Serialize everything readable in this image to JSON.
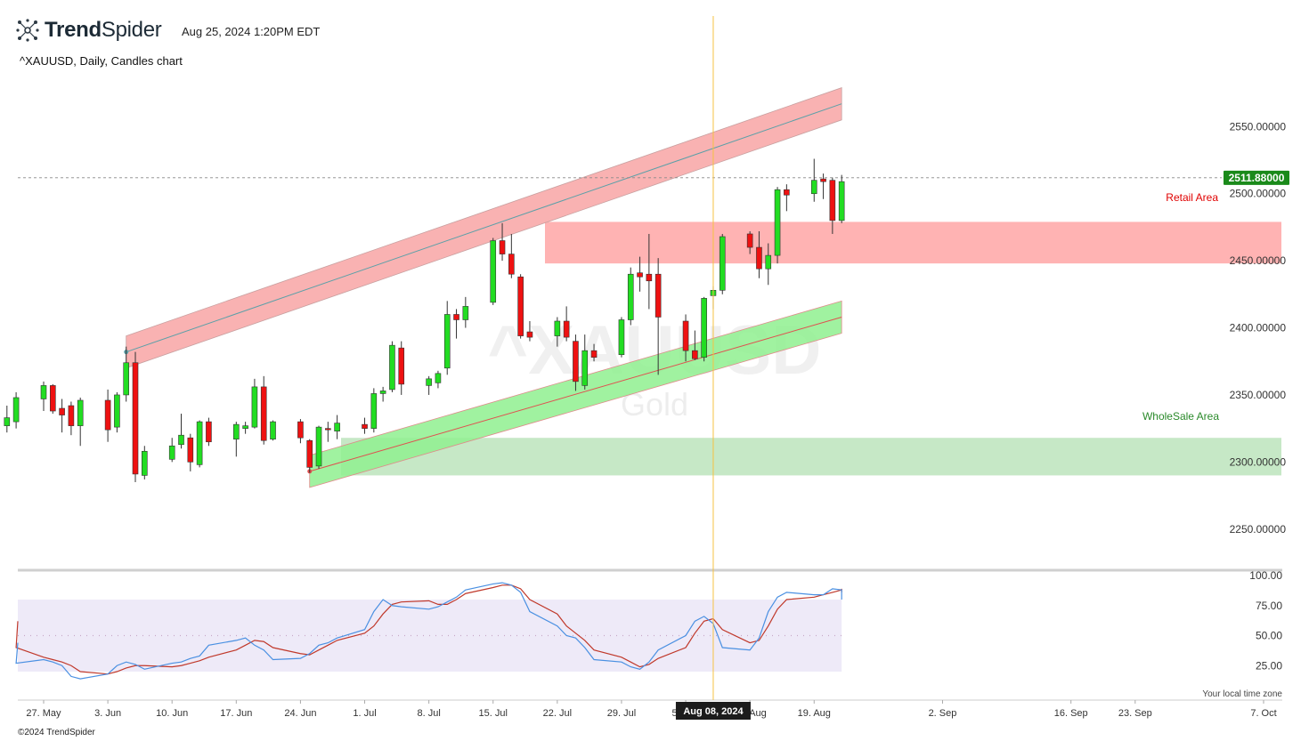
{
  "header": {
    "brand_bold": "Trend",
    "brand_light": "Spider",
    "logo_icon": "trendspider-logo-icon",
    "timestamp": "Aug 25, 2024 1:20PM EDT",
    "subtitle": "^XAUUSD, Daily, Candles chart"
  },
  "footer": {
    "copyright": "©2024 TrendSpider",
    "timezone_note": "Your local time zone"
  },
  "colors": {
    "up": "#22dd22",
    "down": "#ee1111",
    "resistance_band": "#f8a5a5",
    "support_band": "#8ff08f",
    "retail_zone": "#ffb3b3",
    "wholesale_zone": "#c6e8c6",
    "stoch_k": "#4a90e2",
    "stoch_d": "#c0392b",
    "cursor": "#f5c242",
    "price_tag": "#1a8a1a",
    "retail_text": "#e00000",
    "wholesale_text": "#2a8a2a"
  },
  "chart_data": {
    "type": "candlestick",
    "symbol": "^XAUUSD",
    "watermark": {
      "symbol": "^XAUUSD",
      "name": "Gold"
    },
    "timeframe": "Daily",
    "y_range": [
      2220,
      2590
    ],
    "y_ticks": [
      2250,
      2300,
      2350,
      2400,
      2450,
      2500,
      2550
    ],
    "y_tick_labels": [
      "2250.00000",
      "2300.00000",
      "2350.00000",
      "2400.00000",
      "2450.00000",
      "2500.00000",
      "2550.00000"
    ],
    "last_price": 2511.88,
    "last_price_label": "2511.88000",
    "x_ticks": [
      {
        "label": "27. May",
        "date": "2024-05-27"
      },
      {
        "label": "3. Jun",
        "date": "2024-06-03"
      },
      {
        "label": "10. Jun",
        "date": "2024-06-10"
      },
      {
        "label": "17. Jun",
        "date": "2024-06-17"
      },
      {
        "label": "24. Jun",
        "date": "2024-06-24"
      },
      {
        "label": "1. Jul",
        "date": "2024-07-01"
      },
      {
        "label": "8. Jul",
        "date": "2024-07-08"
      },
      {
        "label": "15. Jul",
        "date": "2024-07-15"
      },
      {
        "label": "22. Jul",
        "date": "2024-07-22"
      },
      {
        "label": "29. Jul",
        "date": "2024-07-29"
      },
      {
        "label": "5. Aug",
        "date": "2024-08-05"
      },
      {
        "label": "12. Aug",
        "date": "2024-08-12"
      },
      {
        "label": "19. Aug",
        "date": "2024-08-19"
      },
      {
        "label": "2. Sep",
        "date": "2024-09-02"
      },
      {
        "label": "16. Sep",
        "date": "2024-09-16"
      },
      {
        "label": "23. Sep",
        "date": "2024-09-23"
      },
      {
        "label": "7. Oct",
        "date": "2024-10-07"
      }
    ],
    "cursor": {
      "date": "2024-08-08",
      "label": "Aug 08, 2024"
    },
    "candles": [
      {
        "date": "2024-05-23",
        "o": 2327,
        "h": 2342,
        "l": 2322,
        "c": 2333
      },
      {
        "date": "2024-05-24",
        "o": 2330,
        "h": 2352,
        "l": 2325,
        "c": 2348
      },
      {
        "date": "2024-05-27",
        "o": 2347,
        "h": 2360,
        "l": 2338,
        "c": 2357
      },
      {
        "date": "2024-05-28",
        "o": 2357,
        "h": 2358,
        "l": 2336,
        "c": 2338
      },
      {
        "date": "2024-05-29",
        "o": 2340,
        "h": 2347,
        "l": 2322,
        "c": 2335
      },
      {
        "date": "2024-05-30",
        "o": 2342,
        "h": 2345,
        "l": 2320,
        "c": 2327
      },
      {
        "date": "2024-05-31",
        "o": 2327,
        "h": 2348,
        "l": 2312,
        "c": 2346
      },
      {
        "date": "2024-06-03",
        "o": 2346,
        "h": 2354,
        "l": 2315,
        "c": 2324
      },
      {
        "date": "2024-06-04",
        "o": 2326,
        "h": 2352,
        "l": 2322,
        "c": 2350
      },
      {
        "date": "2024-06-05",
        "o": 2350,
        "h": 2386,
        "l": 2345,
        "c": 2374
      },
      {
        "date": "2024-06-06",
        "o": 2374,
        "h": 2382,
        "l": 2285,
        "c": 2291
      },
      {
        "date": "2024-06-07",
        "o": 2290,
        "h": 2312,
        "l": 2287,
        "c": 2308
      },
      {
        "date": "2024-06-10",
        "o": 2302,
        "h": 2318,
        "l": 2300,
        "c": 2312
      },
      {
        "date": "2024-06-11",
        "o": 2313,
        "h": 2336,
        "l": 2310,
        "c": 2320
      },
      {
        "date": "2024-06-12",
        "o": 2318,
        "h": 2321,
        "l": 2293,
        "c": 2300
      },
      {
        "date": "2024-06-13",
        "o": 2298,
        "h": 2331,
        "l": 2296,
        "c": 2330
      },
      {
        "date": "2024-06-14",
        "o": 2330,
        "h": 2333,
        "l": 2312,
        "c": 2315
      },
      {
        "date": "2024-06-17",
        "o": 2317,
        "h": 2330,
        "l": 2304,
        "c": 2328
      },
      {
        "date": "2024-06-18",
        "o": 2325,
        "h": 2330,
        "l": 2321,
        "c": 2327
      },
      {
        "date": "2024-06-19",
        "o": 2326,
        "h": 2362,
        "l": 2325,
        "c": 2356
      },
      {
        "date": "2024-06-20",
        "o": 2356,
        "h": 2364,
        "l": 2313,
        "c": 2316
      },
      {
        "date": "2024-06-21",
        "o": 2317,
        "h": 2331,
        "l": 2316,
        "c": 2330
      },
      {
        "date": "2024-06-24",
        "o": 2330,
        "h": 2332,
        "l": 2314,
        "c": 2318
      },
      {
        "date": "2024-06-25",
        "o": 2316,
        "h": 2317,
        "l": 2292,
        "c": 2296
      },
      {
        "date": "2024-06-26",
        "o": 2297,
        "h": 2327,
        "l": 2295,
        "c": 2326
      },
      {
        "date": "2024-06-27",
        "o": 2325,
        "h": 2330,
        "l": 2315,
        "c": 2324
      },
      {
        "date": "2024-06-28",
        "o": 2323,
        "h": 2335,
        "l": 2317,
        "c": 2329
      },
      {
        "date": "2024-07-01",
        "o": 2328,
        "h": 2333,
        "l": 2321,
        "c": 2325
      },
      {
        "date": "2024-07-02",
        "o": 2325,
        "h": 2355,
        "l": 2322,
        "c": 2351
      },
      {
        "date": "2024-07-03",
        "o": 2351,
        "h": 2356,
        "l": 2345,
        "c": 2353
      },
      {
        "date": "2024-07-04",
        "o": 2354,
        "h": 2390,
        "l": 2352,
        "c": 2387
      },
      {
        "date": "2024-07-05",
        "o": 2385,
        "h": 2390,
        "l": 2350,
        "c": 2358
      },
      {
        "date": "2024-07-08",
        "o": 2357,
        "h": 2364,
        "l": 2350,
        "c": 2362
      },
      {
        "date": "2024-07-09",
        "o": 2359,
        "h": 2368,
        "l": 2355,
        "c": 2366
      },
      {
        "date": "2024-07-10",
        "o": 2370,
        "h": 2420,
        "l": 2365,
        "c": 2410
      },
      {
        "date": "2024-07-11",
        "o": 2410,
        "h": 2414,
        "l": 2392,
        "c": 2406
      },
      {
        "date": "2024-07-12",
        "o": 2406,
        "h": 2423,
        "l": 2400,
        "c": 2416
      },
      {
        "date": "2024-07-15",
        "o": 2419,
        "h": 2467,
        "l": 2417,
        "c": 2465
      },
      {
        "date": "2024-07-16",
        "o": 2465,
        "h": 2478,
        "l": 2450,
        "c": 2455
      },
      {
        "date": "2024-07-17",
        "o": 2455,
        "h": 2470,
        "l": 2437,
        "c": 2440
      },
      {
        "date": "2024-07-18",
        "o": 2438,
        "h": 2440,
        "l": 2392,
        "c": 2394
      },
      {
        "date": "2024-07-19",
        "o": 2397,
        "h": 2405,
        "l": 2390,
        "c": 2393
      },
      {
        "date": "2024-07-22",
        "o": 2394,
        "h": 2408,
        "l": 2386,
        "c": 2405
      },
      {
        "date": "2024-07-23",
        "o": 2405,
        "h": 2416,
        "l": 2390,
        "c": 2393
      },
      {
        "date": "2024-07-24",
        "o": 2390,
        "h": 2395,
        "l": 2353,
        "c": 2360
      },
      {
        "date": "2024-07-25",
        "o": 2357,
        "h": 2395,
        "l": 2354,
        "c": 2383
      },
      {
        "date": "2024-07-26",
        "o": 2383,
        "h": 2388,
        "l": 2375,
        "c": 2378
      },
      {
        "date": "2024-07-29",
        "o": 2380,
        "h": 2408,
        "l": 2378,
        "c": 2406
      },
      {
        "date": "2024-07-30",
        "o": 2406,
        "h": 2445,
        "l": 2402,
        "c": 2440
      },
      {
        "date": "2024-07-31",
        "o": 2441,
        "h": 2453,
        "l": 2427,
        "c": 2438
      },
      {
        "date": "2024-08-01",
        "o": 2440,
        "h": 2470,
        "l": 2414,
        "c": 2435
      },
      {
        "date": "2024-08-02",
        "o": 2440,
        "h": 2452,
        "l": 2365,
        "c": 2408
      },
      {
        "date": "2024-08-05",
        "o": 2405,
        "h": 2410,
        "l": 2375,
        "c": 2383
      },
      {
        "date": "2024-08-06",
        "o": 2383,
        "h": 2398,
        "l": 2376,
        "c": 2377
      },
      {
        "date": "2024-08-07",
        "o": 2378,
        "h": 2423,
        "l": 2375,
        "c": 2422
      },
      {
        "date": "2024-08-08",
        "o": 2424,
        "h": 2431,
        "l": 2414,
        "c": 2428
      },
      {
        "date": "2024-08-09",
        "o": 2428,
        "h": 2470,
        "l": 2425,
        "c": 2468
      },
      {
        "date": "2024-08-12",
        "o": 2470,
        "h": 2472,
        "l": 2455,
        "c": 2460
      },
      {
        "date": "2024-08-13",
        "o": 2460,
        "h": 2472,
        "l": 2437,
        "c": 2444
      },
      {
        "date": "2024-08-14",
        "o": 2444,
        "h": 2463,
        "l": 2432,
        "c": 2454
      },
      {
        "date": "2024-08-15",
        "o": 2454,
        "h": 2505,
        "l": 2448,
        "c": 2503
      },
      {
        "date": "2024-08-16",
        "o": 2503,
        "h": 2507,
        "l": 2487,
        "c": 2499
      },
      {
        "date": "2024-08-19",
        "o": 2500,
        "h": 2526,
        "l": 2494,
        "c": 2510
      },
      {
        "date": "2024-08-20",
        "o": 2511,
        "h": 2515,
        "l": 2496,
        "c": 2509
      },
      {
        "date": "2024-08-21",
        "o": 2510,
        "h": 2512,
        "l": 2470,
        "c": 2480
      },
      {
        "date": "2024-08-22",
        "o": 2480,
        "h": 2514,
        "l": 2478,
        "c": 2509
      }
    ],
    "upper_channel": {
      "start": {
        "date": "2024-06-05",
        "value": 2382
      },
      "end": {
        "date": "2024-08-22",
        "value": 2567
      },
      "band_width": 24
    },
    "lower_channel": {
      "start": {
        "date": "2024-06-25",
        "value": 2293
      },
      "end": {
        "date": "2024-08-22",
        "value": 2408
      },
      "band_width": 24
    },
    "zones": [
      {
        "name": "Retail Area",
        "low": 2448,
        "high": 2479
      },
      {
        "name": "WholeSale Area",
        "low": 2290,
        "high": 2318
      }
    ],
    "stochastic": {
      "range": [
        0,
        100
      ],
      "ticks": [
        25,
        50,
        75,
        100
      ],
      "tick_labels": [
        "25.00",
        "50.00",
        "75.00",
        "100.00"
      ],
      "overbought": 80,
      "oversold": 20,
      "k": [
        44,
        27,
        30,
        28,
        25,
        16,
        14,
        18,
        25,
        28,
        26,
        22,
        27,
        28,
        31,
        33,
        42,
        46,
        48,
        42,
        38,
        30,
        31,
        35,
        42,
        44,
        48,
        55,
        70,
        80,
        75,
        74,
        72,
        74,
        78,
        82,
        88,
        93,
        94,
        92,
        86,
        70,
        58,
        50,
        48,
        40,
        30,
        28,
        24,
        22,
        28,
        38,
        50,
        62,
        66,
        60,
        40,
        38,
        48,
        70,
        82,
        86,
        84,
        84,
        89,
        88,
        80,
        82
      ],
      "d": [
        62,
        40,
        32,
        30,
        28,
        25,
        20,
        18,
        20,
        23,
        25,
        25,
        24,
        25,
        27,
        29,
        32,
        38,
        42,
        46,
        45,
        40,
        35,
        34,
        38,
        42,
        46,
        52,
        58,
        68,
        76,
        78,
        79,
        76,
        76,
        80,
        85,
        90,
        92,
        92,
        89,
        80,
        68,
        58,
        52,
        46,
        38,
        32,
        28,
        24,
        26,
        31,
        40,
        52,
        62,
        64,
        55,
        44,
        46,
        58,
        72,
        80,
        82,
        84,
        86,
        88,
        89,
        86
      ]
    }
  }
}
